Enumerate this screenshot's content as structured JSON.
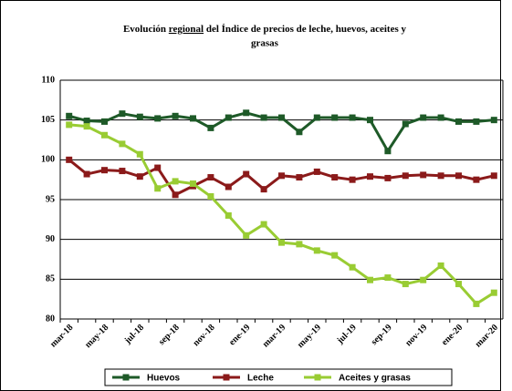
{
  "chart_data": {
    "type": "line",
    "title": [
      "Evolución",
      "regional",
      "del Índice de precios de leche, huevos, aceites y",
      "grasas"
    ],
    "categories": [
      "mar-18",
      null,
      "may-18",
      null,
      "jul-18",
      null,
      "sep-18",
      null,
      "nov-18",
      null,
      "ene-19",
      null,
      "mar-19",
      null,
      "may-19",
      null,
      "jul-19",
      null,
      "sep-19",
      null,
      "nov-19",
      null,
      "ene-20",
      null,
      "mar-20"
    ],
    "series": [
      {
        "name": "Huevos",
        "color": "#1e5a28",
        "values": [
          105.5,
          104.9,
          104.8,
          105.8,
          105.4,
          105.2,
          105.5,
          105.2,
          104.0,
          105.3,
          105.9,
          105.3,
          105.3,
          103.5,
          105.3,
          105.3,
          105.3,
          105.0,
          101.1,
          104.5,
          105.3,
          105.3,
          104.8,
          104.8,
          105.0
        ]
      },
      {
        "name": "Leche",
        "color": "#8b1a1a",
        "values": [
          100.0,
          98.2,
          98.7,
          98.6,
          97.9,
          99.0,
          95.6,
          96.7,
          97.8,
          96.6,
          98.2,
          96.3,
          98.0,
          97.8,
          98.5,
          97.8,
          97.5,
          97.9,
          97.7,
          98.0,
          98.1,
          98.0,
          98.0,
          97.5,
          98.0
        ]
      },
      {
        "name": "Aceites y grasas",
        "color": "#99cc33",
        "values": [
          104.4,
          104.2,
          103.1,
          102.0,
          100.7,
          96.4,
          97.3,
          97.0,
          95.4,
          93.0,
          90.5,
          91.9,
          89.6,
          89.4,
          88.6,
          88.0,
          86.5,
          84.9,
          85.2,
          84.4,
          84.9,
          86.7,
          84.4,
          81.9,
          83.3
        ]
      }
    ],
    "ylim": [
      80,
      110
    ],
    "yticks": [
      80,
      85,
      90,
      95,
      100,
      105,
      110
    ],
    "grid": true,
    "legend": "bottom"
  }
}
